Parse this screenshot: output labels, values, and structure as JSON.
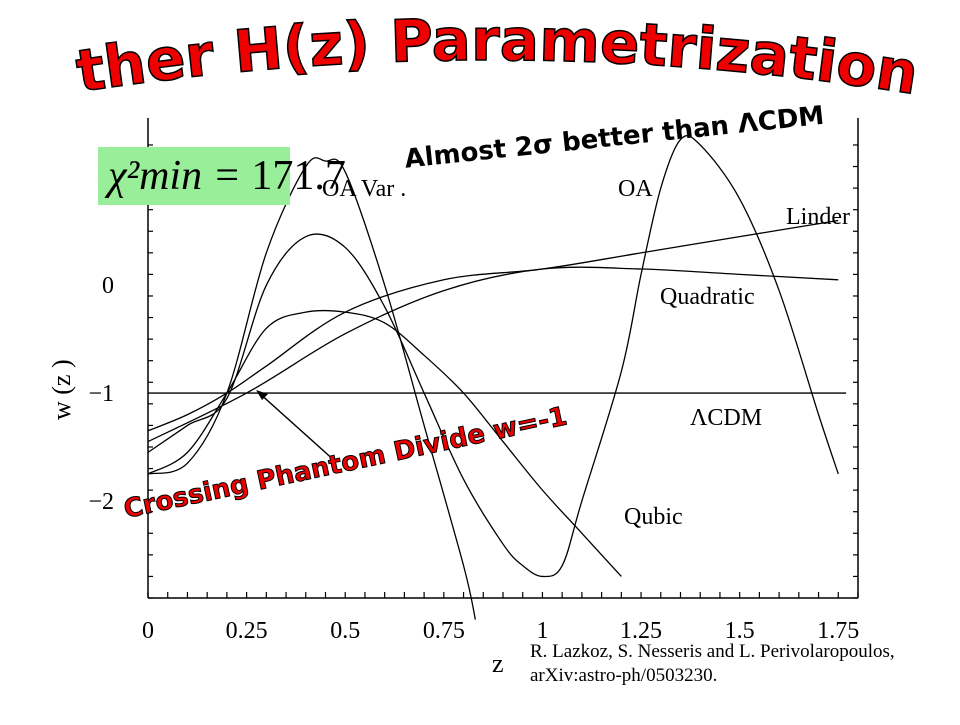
{
  "slide": {
    "title": "Other H(z) Parametrizations",
    "subtitle": "Almost 2σ better than ΛCDM",
    "chi_min_symbol": "χ²min =",
    "chi_min_value": "171.7",
    "annotation": "Crossing Phantom Divide w=-1",
    "credit_line1": "R. Lazkoz, S. Nesseris and L. Perivolaropoulos,",
    "credit_line2": "arXiv:astro-ph/0503230.",
    "colors": {
      "title": "#ee0000",
      "title_outline": "#000000",
      "chi_box": "#99ee99"
    }
  },
  "chart_data": {
    "type": "line",
    "xlabel": "z",
    "ylabel": "w (z )",
    "xlim": [
      0,
      1.8
    ],
    "ylim": [
      -2.9,
      1.55
    ],
    "xticks": [
      0,
      0.25,
      0.5,
      0.75,
      1,
      1.25,
      1.5,
      1.75
    ],
    "xtick_labels": [
      "0",
      "0.25",
      "0.5",
      "0.75",
      "1",
      "1.25",
      "1.5",
      "1.75"
    ],
    "yticks": [
      0,
      -1,
      -2
    ],
    "ytick_labels": [
      "0",
      "−1",
      "−2"
    ],
    "grid": false,
    "series": [
      {
        "name": "OA Var .",
        "x": [
          0,
          0.1,
          0.2,
          0.3,
          0.4,
          0.45,
          0.5,
          0.6,
          0.7,
          0.8,
          0.83
        ],
        "y": [
          -1.75,
          -1.65,
          -1.0,
          0.3,
          1.1,
          1.15,
          1.05,
          0.0,
          -1.3,
          -2.6,
          -3.1
        ]
      },
      {
        "name": "OA",
        "x": [
          0,
          0.1,
          0.2,
          0.3,
          0.4,
          0.5,
          0.6,
          0.7,
          0.8,
          0.9,
          0.95,
          1.0,
          1.05,
          1.1,
          1.2,
          1.25,
          1.3,
          1.35,
          1.4,
          1.5,
          1.6,
          1.7,
          1.75
        ],
        "y": [
          -1.55,
          -1.3,
          -1.05,
          0.0,
          0.45,
          0.35,
          -0.2,
          -1.0,
          -1.8,
          -2.4,
          -2.6,
          -2.7,
          -2.6,
          -2.0,
          -0.8,
          0.1,
          0.9,
          1.35,
          1.3,
          0.8,
          -0.05,
          -1.2,
          -1.75
        ]
      },
      {
        "name": "Linder",
        "x": [
          0,
          0.1,
          0.2,
          0.3,
          0.5,
          0.75,
          1,
          1.25,
          1.5,
          1.75
        ],
        "y": [
          -1.35,
          -1.2,
          -1.0,
          -0.75,
          -0.25,
          0.05,
          0.15,
          0.3,
          0.45,
          0.6
        ]
      },
      {
        "name": "Quadratic",
        "x": [
          0,
          0.25,
          0.5,
          0.75,
          1,
          1.25,
          1.5,
          1.75
        ],
        "y": [
          -1.45,
          -1.0,
          -0.45,
          -0.05,
          0.15,
          0.15,
          0.1,
          0.05
        ]
      },
      {
        "name": "Qubic",
        "x": [
          0,
          0.1,
          0.2,
          0.3,
          0.4,
          0.5,
          0.6,
          0.7,
          0.8,
          0.9,
          1.0,
          1.1,
          1.2
        ],
        "y": [
          -1.75,
          -1.55,
          -1.0,
          -0.4,
          -0.25,
          -0.25,
          -0.35,
          -0.65,
          -1.0,
          -1.45,
          -1.9,
          -2.3,
          -2.7
        ]
      },
      {
        "name": "ΛCDM",
        "x": [
          0,
          1.77
        ],
        "y": [
          -1,
          -1
        ]
      }
    ],
    "annotations": [
      "OA Var .",
      "OA",
      "Linder",
      "Quadratic",
      "ΛCDM",
      "Qubic"
    ]
  }
}
